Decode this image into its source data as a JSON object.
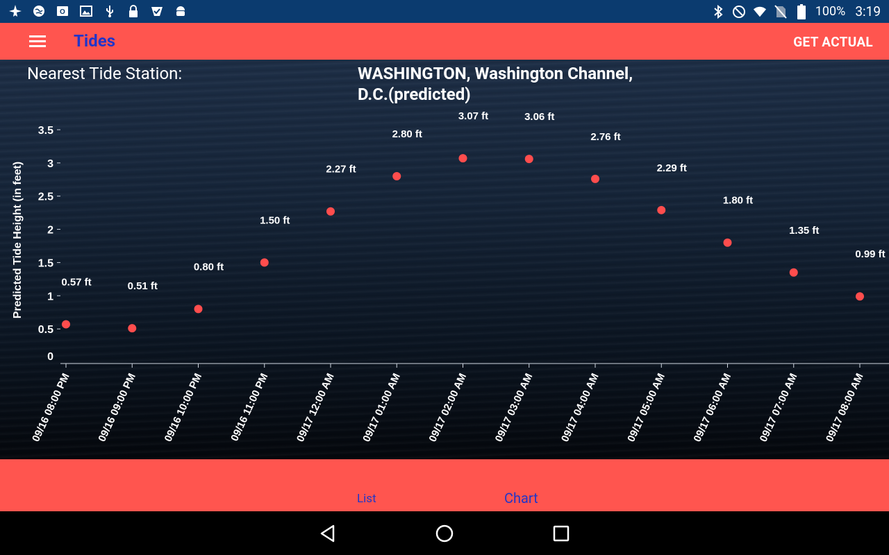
{
  "status_bar": {
    "left_icons": [
      "plane-icon",
      "globe-icon",
      "outlook-icon",
      "image-icon",
      "usb-icon",
      "lock-icon",
      "check-store-icon",
      "android-icon"
    ],
    "right_icons": [
      "bluetooth-icon",
      "do-not-disturb-icon",
      "wifi-icon",
      "no-sim-icon",
      "battery-icon"
    ],
    "battery": "100%",
    "time": "3:19"
  },
  "app_bar": {
    "title": "Tides",
    "action": "GET ACTUAL",
    "colors": {
      "bar": "#ff554f",
      "title": "#2335c8"
    }
  },
  "station": {
    "label": "Nearest Tide Station:",
    "name": "WASHINGTON, Washington Channel, D.C.(predicted)"
  },
  "chart_data": {
    "type": "scatter",
    "ylabel": "Predicted Tide Height (in feet)",
    "ylim": [
      0,
      3.5
    ],
    "yticks": [
      "0",
      "0.5",
      "1",
      "1.5",
      "2",
      "2.5",
      "3",
      "3.5"
    ],
    "x": [
      "09/16 08:00 PM",
      "09/16 09:00 PM",
      "09/16 10:00 PM",
      "09/16 11:00 PM",
      "09/17 12:00 AM",
      "09/17 01:00 AM",
      "09/17 02:00 AM",
      "09/17 03:00 AM",
      "09/17 04:00 AM",
      "09/17 05:00 AM",
      "09/17 06:00 AM",
      "09/17 07:00 AM",
      "09/17 08:00 AM"
    ],
    "values": [
      0.57,
      0.51,
      0.8,
      1.5,
      2.27,
      2.8,
      3.07,
      3.06,
      2.76,
      2.29,
      1.8,
      1.35,
      0.99
    ],
    "labels": [
      "0.57 ft",
      "0.51 ft",
      "0.80 ft",
      "1.50 ft",
      "2.27 ft",
      "2.80 ft",
      "3.07 ft",
      "3.06 ft",
      "2.76 ft",
      "2.29 ft",
      "1.80 ft",
      "1.35 ft",
      "0.99 ft"
    ],
    "point_color": "#ff4d4d",
    "grid": false
  },
  "tabs": {
    "list": "List",
    "chart": "Chart",
    "selected": "chart"
  },
  "nav": {
    "buttons": [
      "back-icon",
      "home-icon",
      "recents-icon"
    ]
  }
}
